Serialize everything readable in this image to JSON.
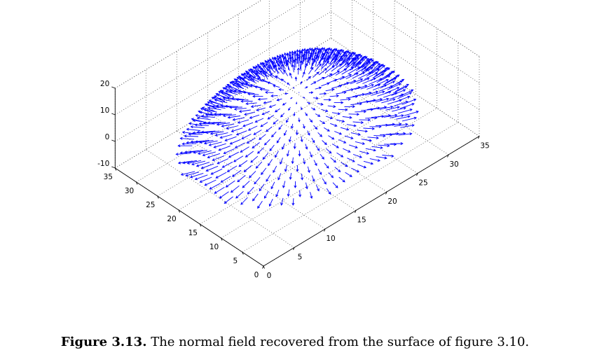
{
  "chart_data": {
    "type": "quiver3d",
    "title": "",
    "xlabel": "",
    "ylabel": "",
    "zlabel": "",
    "x_ticks": [
      "0",
      "5",
      "10",
      "15",
      "20",
      "25",
      "30",
      "35"
    ],
    "y_ticks": [
      "0",
      "5",
      "10",
      "15",
      "20",
      "25",
      "30",
      "35"
    ],
    "z_ticks": [
      "-10",
      "0",
      "10",
      "20"
    ],
    "xlim": [
      0,
      35
    ],
    "ylim": [
      0,
      35
    ],
    "zlim": [
      -10,
      20
    ],
    "grid": true,
    "series": [
      {
        "description": "normal vectors sampled on a dome surface over a grid",
        "color": "#0000ff",
        "grid_x": [
          4,
          31,
          1
        ],
        "grid_y": [
          4,
          31,
          1
        ],
        "surface_center": [
          17.5,
          17.5
        ],
        "surface_radius": 14.5,
        "surface_peak_z": 18,
        "surface_rim_z": -4
      }
    ]
  },
  "caption": {
    "label": "Figure 3.13.",
    "text": " The normal field recovered from the surface of figure 3.10."
  },
  "colors": {
    "arrows": "#0000ff",
    "axes": "#000000",
    "grid": "#555555"
  }
}
